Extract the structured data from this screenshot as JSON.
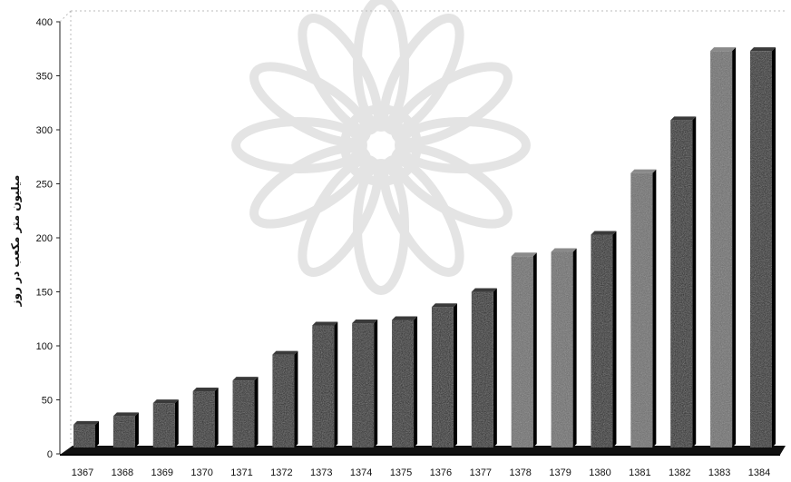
{
  "chart_data": {
    "type": "bar",
    "title": "",
    "xlabel": "",
    "ylabel": "میلیون متر مکعب در روز",
    "categories": [
      "1367",
      "1368",
      "1369",
      "1370",
      "1371",
      "1372",
      "1373",
      "1374",
      "1375",
      "1376",
      "1377",
      "1378",
      "1379",
      "1380",
      "1381",
      "1382",
      "1383",
      "1384"
    ],
    "values": [
      32,
      40,
      52,
      63,
      73,
      97,
      124,
      126,
      129,
      141,
      155,
      188,
      192,
      208,
      265,
      314,
      378,
      378
    ],
    "ylim": [
      0,
      400
    ],
    "yticks": [
      0,
      50,
      100,
      150,
      200,
      250,
      300,
      350,
      400
    ],
    "grid": false,
    "legend": "none",
    "colors": {
      "bar_dark": "#1c1c1c",
      "bar_light": "#6a6a6a",
      "floor": "#111111",
      "axis": "#222222",
      "watermark": "#cfcfcf"
    }
  }
}
